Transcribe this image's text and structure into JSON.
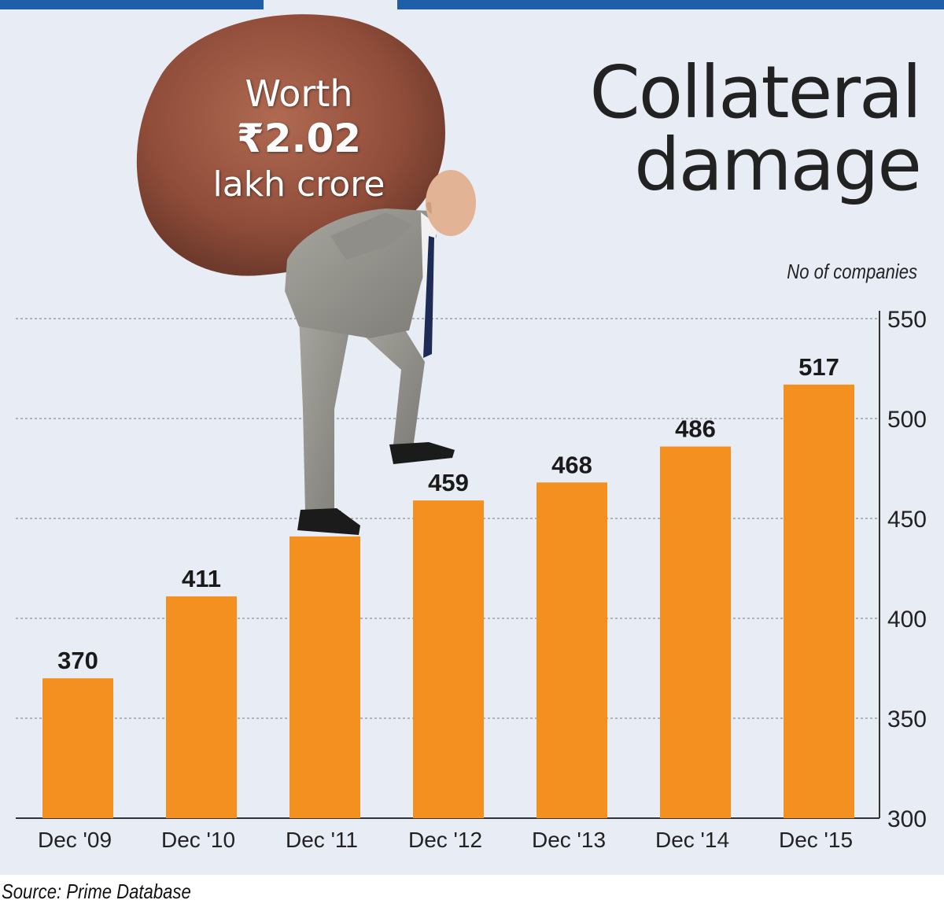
{
  "title_line1": "Collateral",
  "title_line2": "damage",
  "ylabel": "No of companies",
  "source": "Source: Prime Database",
  "rock": {
    "line1": "Worth",
    "line2": "₹2.02",
    "line3": "lakh crore"
  },
  "colors": {
    "bar": "#f4901f",
    "background": "#e8ecf4",
    "accent": "#1f5fa8"
  },
  "chart_data": {
    "type": "bar",
    "categories": [
      "Dec '09",
      "Dec '10",
      "Dec '11",
      "Dec '12",
      "Dec '13",
      "Dec '14",
      "Dec '15"
    ],
    "values": [
      370,
      411,
      441,
      459,
      468,
      486,
      517
    ],
    "title": "Collateral damage",
    "xlabel": "",
    "ylabel": "No of companies",
    "ylim": [
      300,
      550
    ],
    "yticks": [
      300,
      350,
      400,
      450,
      500,
      550
    ],
    "grid": true,
    "axis_side": "right"
  }
}
